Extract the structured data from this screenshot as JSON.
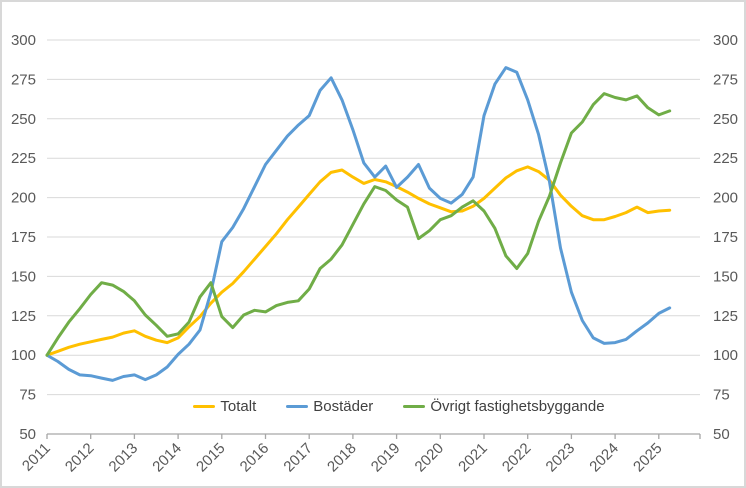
{
  "chart_data": {
    "type": "line",
    "title": "",
    "xlabel": "",
    "ylabel": "",
    "grid": true,
    "legend_position": "bottom-inside",
    "x_axis": {
      "labels": [
        "2011",
        "2012",
        "2013",
        "2014",
        "2015",
        "2016",
        "2017",
        "2018",
        "2019",
        "2020",
        "2021",
        "2022",
        "2023",
        "2024",
        "2025"
      ],
      "label_rotation_deg": -45
    },
    "y_axis": {
      "min": 50,
      "max": 300,
      "step": 25,
      "ticks": [
        50,
        75,
        100,
        125,
        150,
        175,
        200,
        225,
        250,
        275,
        300
      ],
      "left_labels": true,
      "right_labels": true
    },
    "x": [
      2011.0,
      2011.25,
      2011.5,
      2011.75,
      2012.0,
      2012.25,
      2012.5,
      2012.75,
      2013.0,
      2013.25,
      2013.5,
      2013.75,
      2014.0,
      2014.25,
      2014.5,
      2014.75,
      2015.0,
      2015.25,
      2015.5,
      2015.75,
      2016.0,
      2016.25,
      2016.5,
      2016.75,
      2017.0,
      2017.25,
      2017.5,
      2017.75,
      2018.0,
      2018.25,
      2018.5,
      2018.75,
      2019.0,
      2019.25,
      2019.5,
      2019.75,
      2020.0,
      2020.25,
      2020.5,
      2020.75,
      2021.0,
      2021.25,
      2021.5,
      2021.75,
      2022.0,
      2022.25,
      2022.5,
      2022.75,
      2023.0,
      2023.25,
      2023.5,
      2023.75,
      2024.0,
      2024.25,
      2024.5,
      2024.75,
      2025.0,
      2025.25
    ],
    "series": [
      {
        "name": "Totalt",
        "color": "#FFC000",
        "values": [
          100,
          102.5,
          105,
          107,
          108.5,
          110,
          111.5,
          114,
          115.5,
          112,
          109.5,
          108,
          111,
          118,
          124.5,
          133,
          140,
          145.5,
          153,
          161,
          169,
          177,
          186,
          194,
          202,
          210,
          216,
          217.5,
          213,
          209,
          211.5,
          210,
          207,
          203.5,
          199.5,
          196,
          193.5,
          191,
          191.5,
          194.5,
          199.5,
          206,
          212.5,
          217,
          219.5,
          216.5,
          211,
          201.5,
          194.5,
          188.5,
          186,
          186,
          188,
          190.5,
          194,
          190.5,
          191.5,
          192
        ]
      },
      {
        "name": "Bostäder",
        "color": "#5B9BD5",
        "values": [
          100,
          96,
          91,
          87.5,
          87,
          85.5,
          84,
          86.5,
          87.5,
          84.5,
          87.5,
          92.5,
          100.5,
          107,
          116,
          140,
          172,
          181,
          193,
          207,
          221,
          230,
          239,
          246,
          252,
          268,
          276,
          262,
          243,
          222,
          213,
          220,
          206.5,
          213,
          221,
          206,
          199.5,
          196.5,
          202,
          213,
          252,
          272,
          282.5,
          279.5,
          262,
          240,
          210,
          168,
          140,
          122,
          111,
          107.5,
          108,
          110,
          115.5,
          120.5,
          126.5,
          130
        ]
      },
      {
        "name": "Övrigt fastighetsbyggande",
        "color": "#70AD47",
        "values": [
          100,
          111,
          121,
          129.5,
          138.5,
          146,
          144.5,
          140.5,
          134.5,
          125.5,
          119,
          112,
          113.5,
          121,
          137,
          146,
          124.5,
          117.5,
          125.5,
          128.5,
          127.5,
          131.5,
          133.5,
          134.5,
          142,
          155,
          161,
          170,
          183,
          196,
          207,
          204.5,
          198.5,
          194,
          174,
          179,
          186,
          188.5,
          194,
          198,
          191.5,
          180.5,
          163,
          155,
          164.5,
          185,
          201,
          222,
          241,
          248,
          259,
          266,
          263.5,
          262,
          264.5,
          257,
          252.5,
          255
        ]
      }
    ],
    "colors": {
      "gridline": "#d9d9d9",
      "axis_line": "#a6a6a6",
      "tick": "#a6a6a6",
      "tick_label": "#595959",
      "legend_text": "#404040",
      "frame_border": "#d8d8d8",
      "background": "#ffffff"
    }
  }
}
